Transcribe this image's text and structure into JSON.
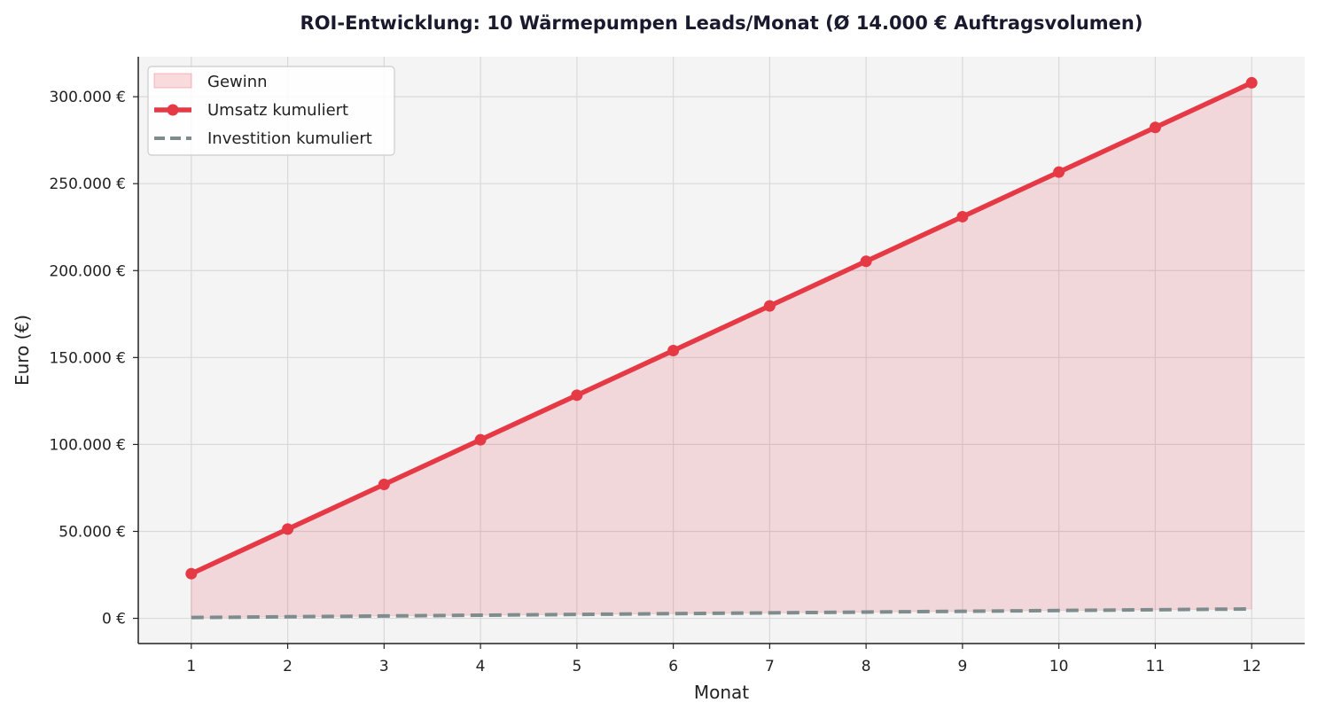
{
  "chart_data": {
    "type": "line",
    "title": "ROI-Entwicklung: 10 Wärmepumpen Leads/Monat (Ø 14.000 € Auftragsvolumen)",
    "xlabel": "Monat",
    "ylabel": "Euro (€)",
    "x": [
      1,
      2,
      3,
      4,
      5,
      6,
      7,
      8,
      9,
      10,
      11,
      12
    ],
    "xlim": [
      0.45,
      12.55
    ],
    "ylim": [
      -14500,
      323000
    ],
    "yticks": [
      0,
      50000,
      100000,
      150000,
      200000,
      250000,
      300000
    ],
    "ytick_labels": [
      "0 €",
      "50.000 €",
      "100.000 €",
      "150.000 €",
      "200.000 €",
      "250.000 €",
      "300.000 €"
    ],
    "xtick_labels": [
      "1",
      "2",
      "3",
      "4",
      "5",
      "6",
      "7",
      "8",
      "9",
      "10",
      "11",
      "12"
    ],
    "grid": true,
    "legend_position": "top-left",
    "series": [
      {
        "name": "Umsatz kumuliert",
        "style": "solid-line-with-markers",
        "color": "#e63946",
        "values": [
          25667,
          51333,
          77000,
          102667,
          128333,
          154000,
          179667,
          205333,
          231000,
          256667,
          282333,
          308000
        ]
      },
      {
        "name": "Investition kumuliert",
        "style": "dashed-line",
        "color": "#7f8c8d",
        "values": [
          450,
          900,
          1350,
          1800,
          2250,
          2700,
          3150,
          3600,
          4050,
          4500,
          4950,
          5400
        ]
      }
    ],
    "fill": {
      "name": "Gewinn",
      "between": [
        "Investition kumuliert",
        "Umsatz kumuliert"
      ],
      "color": "#e63946"
    },
    "legend": [
      "Gewinn",
      "Umsatz kumuliert",
      "Investition kumuliert"
    ]
  },
  "colors": {
    "plot_background": "#f4f4f4",
    "grid": "#d9d9d9",
    "axis": "#222222"
  }
}
